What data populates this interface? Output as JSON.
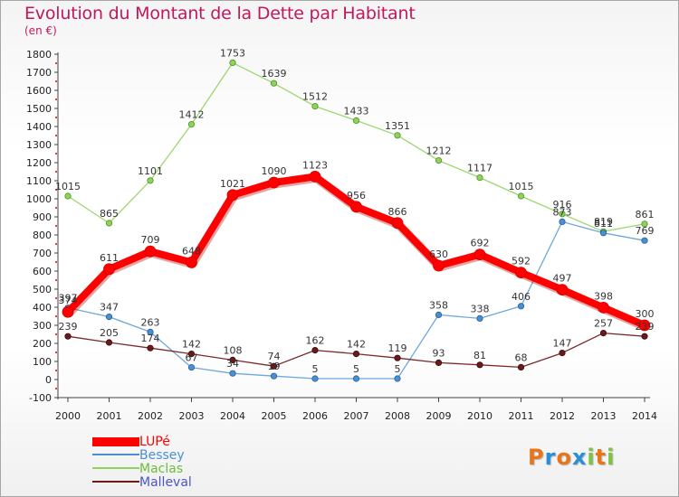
{
  "header": {
    "title": "Evolution du Montant de la Dette par Habitant",
    "unit": "(en €)"
  },
  "colors": {
    "title": "#c2185b",
    "LUPé": "#ff0000",
    "Bessey": "#4a8fd4",
    "Maclas": "#8ed35a",
    "Malleval": "#6b1a1a"
  },
  "legend": [
    {
      "name": "LUPé",
      "color": "#ff0000"
    },
    {
      "name": "Bessey",
      "color": "#4a8fd4"
    },
    {
      "name": "Maclas",
      "color": "#8ed35a"
    },
    {
      "name": "Malleval",
      "color": "#6b1a1a"
    }
  ],
  "logo": {
    "letters": [
      "P",
      "r",
      "o",
      "x",
      "i",
      "t",
      "i"
    ],
    "colors": [
      "#e8751a",
      "#2a8fd8",
      "#e8751a",
      "#2a8fd8",
      "#7cc243",
      "#e8751a",
      "#7cc243"
    ]
  },
  "chart_data": {
    "type": "line",
    "title": "Evolution du Montant de la Dette par Habitant",
    "ylabel": "(en €)",
    "xlabel": "",
    "x": [
      "2000",
      "2001",
      "2002",
      "2003",
      "2004",
      "2005",
      "2006",
      "2007",
      "2008",
      "2009",
      "2010",
      "2011",
      "2012",
      "2013",
      "2014"
    ],
    "ylim": [
      -100,
      1800
    ],
    "yticks": [
      "-100",
      "0",
      "100",
      "200",
      "300",
      "400",
      "500",
      "600",
      "700",
      "800",
      "900",
      "1000",
      "1100",
      "1200",
      "1300",
      "1400",
      "1500",
      "1600",
      "1700",
      "1800"
    ],
    "grid": false,
    "legend_position": "bottom-left",
    "series": [
      {
        "name": "LUPé",
        "values": [
          374,
          611,
          709,
          648,
          1021,
          1090,
          1123,
          956,
          866,
          630,
          692,
          592,
          497,
          398,
          300
        ],
        "labels": [
          "374",
          "611",
          "709",
          "648",
          "1021",
          "1090",
          "1123",
          "956",
          "866",
          "630",
          "692",
          "592",
          "497",
          "398",
          "300"
        ]
      },
      {
        "name": "Bessey",
        "values": [
          397,
          347,
          263,
          67,
          34,
          19,
          5,
          5,
          5,
          358,
          338,
          406,
          873,
          811,
          769
        ],
        "labels": [
          "397",
          "347",
          "263",
          "67",
          "34",
          "19",
          "5",
          "5",
          "5",
          "358",
          "338",
          "406",
          "873",
          "811",
          "769"
        ]
      },
      {
        "name": "Maclas",
        "values": [
          1015,
          865,
          1101,
          1412,
          1753,
          1639,
          1512,
          1433,
          1351,
          1212,
          1117,
          1015,
          916,
          819,
          861
        ],
        "labels": [
          "1015",
          "865",
          "1101",
          "1412",
          "1753",
          "1639",
          "1512",
          "1433",
          "1351",
          "1212",
          "1117",
          "1015",
          "916",
          "819",
          "861"
        ]
      },
      {
        "name": "Malleval",
        "values": [
          239,
          205,
          174,
          142,
          108,
          74,
          162,
          142,
          119,
          93,
          81,
          68,
          147,
          257,
          239
        ],
        "labels": [
          "239",
          "205",
          "174",
          "142",
          "108",
          "74",
          "162",
          "142",
          "119",
          "93",
          "81",
          "68",
          "147",
          "257",
          "239"
        ]
      }
    ]
  }
}
